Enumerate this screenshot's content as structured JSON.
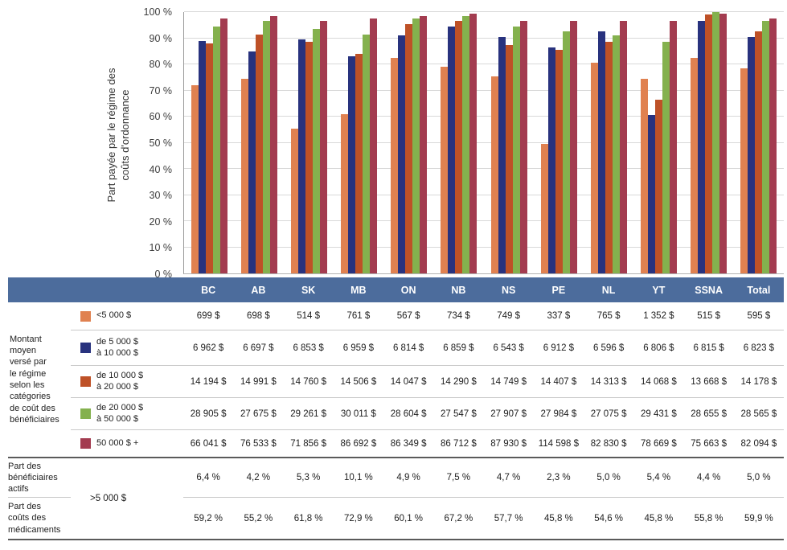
{
  "page": {
    "y_axis_title": "Part payée par le régime des\ncoûts d'ordonnance"
  },
  "chart_data": {
    "type": "bar",
    "title": "",
    "ylabel": "Part payée par le régime des coûts d'ordonnance",
    "xlabel": "",
    "ylim": [
      0,
      100
    ],
    "grid": true,
    "legend_position": "table-left",
    "ytick_labels": [
      "0 %",
      "10 %",
      "20 %",
      "30 %",
      "40 %",
      "50 %",
      "60 %",
      "70 %",
      "80 %",
      "90 %",
      "100 %"
    ],
    "categories": [
      "BC",
      "AB",
      "SK",
      "MB",
      "ON",
      "NB",
      "NS",
      "PE",
      "NL",
      "YT",
      "SSNA",
      "Total"
    ],
    "series": [
      {
        "name": "<5 000 $",
        "color": "#E08150",
        "values": [
          72,
          74.5,
          55.5,
          61,
          82.5,
          79,
          75.5,
          49.5,
          80.5,
          74.5,
          82.5,
          78.5
        ]
      },
      {
        "name": "de 5 000 $ à 10 000 $",
        "color": "#28327E",
        "values": [
          89,
          85,
          89.5,
          83,
          91,
          94.5,
          90.5,
          86.5,
          92.5,
          60.5,
          96.5,
          90.5
        ]
      },
      {
        "name": "de 10 000 $ à 20 000 $",
        "color": "#BE5127",
        "values": [
          88,
          91.5,
          88.5,
          84,
          95.5,
          96.5,
          87.5,
          85.5,
          88.5,
          66.5,
          99,
          92.5
        ]
      },
      {
        "name": "de 20 000 $ à 50 000 $",
        "color": "#84B14E",
        "values": [
          94.5,
          96.5,
          93.5,
          91.5,
          97.5,
          98.5,
          94.5,
          92.5,
          91,
          88.5,
          100,
          96.5
        ]
      },
      {
        "name": "50 000 $ +",
        "color": "#A33C50",
        "values": [
          97.5,
          98.5,
          96.5,
          97.5,
          98.5,
          99.5,
          96.5,
          96.5,
          96.5,
          96.5,
          99.5,
          97.5
        ]
      }
    ]
  },
  "table": {
    "columns": [
      "BC",
      "AB",
      "SK",
      "MB",
      "ON",
      "NB",
      "NS",
      "PE",
      "NL",
      "YT",
      "SSNA",
      "Total"
    ],
    "group_label": "Montant\nmoyen\nversé par\nle régime\nselon les\ncatégories\nde coût des\nbénéficiaires",
    "category_rows": [
      {
        "legend": "<5 000 $",
        "color": "#E08150",
        "values": [
          "699 $",
          "698 $",
          "514 $",
          "761 $",
          "567 $",
          "734 $",
          "749 $",
          "337 $",
          "765 $",
          "1 352 $",
          "515 $",
          "595 $"
        ]
      },
      {
        "legend": "de 5 000 $\nà 10 000 $",
        "color": "#28327E",
        "values": [
          "6 962 $",
          "6 697 $",
          "6 853 $",
          "6 959 $",
          "6 814 $",
          "6 859 $",
          "6 543 $",
          "6 912 $",
          "6 596 $",
          "6 806 $",
          "6 815 $",
          "6 823 $"
        ]
      },
      {
        "legend": "de 10 000 $\nà 20 000 $",
        "color": "#BE5127",
        "values": [
          "14 194 $",
          "14 991 $",
          "14 760 $",
          "14 506 $",
          "14 047 $",
          "14 290 $",
          "14 749 $",
          "14 407 $",
          "14 313 $",
          "14 068 $",
          "13 668 $",
          "14 178 $"
        ]
      },
      {
        "legend": "de 20 000 $\nà 50 000 $",
        "color": "#84B14E",
        "values": [
          "28 905 $",
          "27 675 $",
          "29 261 $",
          "30 011 $",
          "28 604 $",
          "27 547 $",
          "27 907 $",
          "27 984 $",
          "27 075 $",
          "29 431 $",
          "28 655 $",
          "28 565 $"
        ]
      },
      {
        "legend": "50 000 $ +",
        "color": "#A33C50",
        "values": [
          "66 041 $",
          "76 533 $",
          "71 856 $",
          "86 692 $",
          "86 349 $",
          "86 712 $",
          "87 930 $",
          "114 598 $",
          "82 830 $",
          "78 669 $",
          "75 663 $",
          "82 094 $"
        ]
      }
    ],
    "part_legend": ">5 000 $",
    "part_rows": [
      {
        "label": "Part des\nbénéficiaires\nactifs",
        "values": [
          "6,4 %",
          "4,2 %",
          "5,3 %",
          "10,1 %",
          "4,9 %",
          "7,5 %",
          "4,7 %",
          "2,3 %",
          "5,0 %",
          "5,4 %",
          "4,4 %",
          "5,0 %"
        ]
      },
      {
        "label": "Part des\ncoûts des\nmédicaments",
        "values": [
          "59,2 %",
          "55,2 %",
          "61,8 %",
          "72,9 %",
          "60,1 %",
          "67,2 %",
          "57,7 %",
          "45,8 %",
          "54,6 %",
          "45,8 %",
          "55,8 %",
          "59,9 %"
        ]
      }
    ]
  }
}
